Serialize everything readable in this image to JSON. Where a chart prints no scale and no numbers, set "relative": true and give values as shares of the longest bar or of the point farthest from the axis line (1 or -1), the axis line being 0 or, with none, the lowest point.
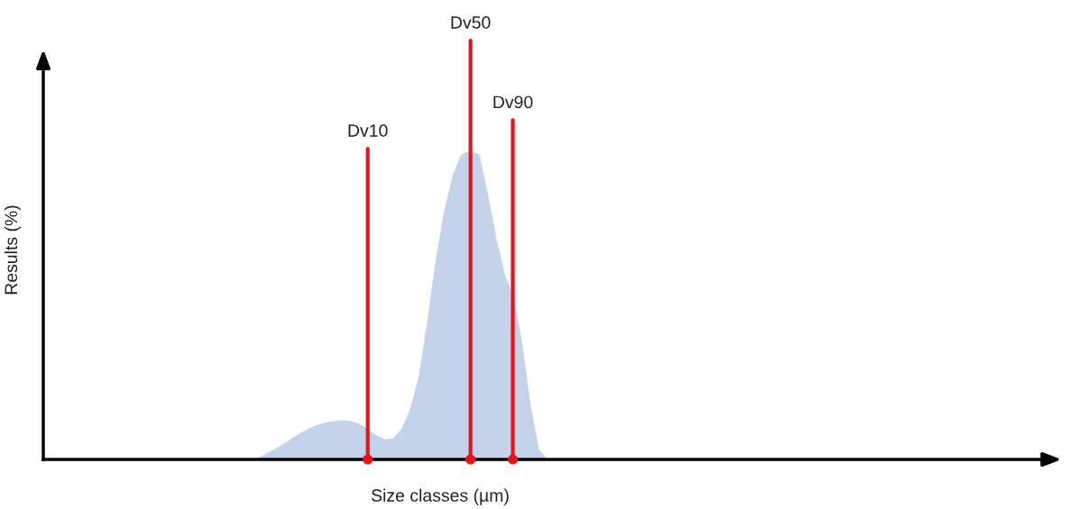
{
  "chart_data": {
    "type": "area",
    "xlabel": "Size classes (µm)",
    "ylabel": "Results (%)",
    "relative": true,
    "categories": [
      null,
      null,
      null,
      null,
      null,
      null,
      null,
      null,
      null,
      null,
      null,
      null,
      null,
      null,
      null,
      null,
      null,
      null,
      null,
      null,
      null,
      null,
      null,
      null,
      null,
      null,
      null,
      null,
      null,
      null,
      null,
      null,
      null,
      null,
      null,
      null,
      null,
      null,
      null,
      null,
      null,
      null,
      null,
      null,
      null,
      null,
      null,
      null,
      null,
      null,
      null,
      null,
      null,
      null,
      null,
      null,
      null,
      null,
      null,
      null,
      null,
      null,
      null,
      null,
      null,
      null,
      null,
      null,
      null,
      null,
      null,
      null,
      null,
      null,
      null,
      null,
      null,
      null,
      null,
      null,
      null,
      null,
      null,
      null,
      null,
      null,
      null,
      null,
      null,
      null,
      null,
      null,
      null,
      null,
      null,
      null,
      null,
      null,
      null,
      null,
      null,
      null,
      null,
      null,
      null,
      null,
      null,
      null,
      null,
      null,
      null,
      null,
      null,
      null,
      null,
      null,
      null,
      null,
      null
    ],
    "series": [
      {
        "color": "#c5d3ea",
        "values": [
          null,
          null,
          null,
          null,
          null,
          null,
          null,
          null,
          null,
          null,
          null,
          null,
          null,
          null,
          null,
          null,
          null,
          null,
          null,
          null,
          null,
          null,
          null,
          null,
          null,
          0,
          0.015,
          0.03,
          0.046,
          0.064,
          0.082,
          0.097,
          0.109,
          0.117,
          0.122,
          0.125,
          0.122,
          0.114,
          0.097,
          0.076,
          0.064,
          0.067,
          0.097,
          0.161,
          0.264,
          0.439,
          0.644,
          0.804,
          0.921,
          0.989,
          1,
          0.989,
          0.863,
          0.717,
          0.6,
          0.527,
          0.381,
          0.176,
          0.03,
          0,
          null,
          null,
          null,
          null,
          null,
          null,
          null,
          null,
          null,
          null,
          null,
          null,
          null,
          null,
          null,
          null,
          null,
          null,
          null,
          null,
          null,
          null,
          null,
          null,
          null,
          null,
          null,
          null,
          null,
          null,
          null,
          null,
          null,
          null,
          null,
          null,
          null,
          null,
          null,
          null,
          null,
          null,
          null,
          null,
          null,
          null,
          null,
          null,
          null,
          null,
          null,
          null,
          null,
          null,
          null,
          null,
          null,
          null,
          null
        ]
      }
    ],
    "annotations": [
      "Dv10",
      "Dv50",
      "Dv90"
    ]
  }
}
